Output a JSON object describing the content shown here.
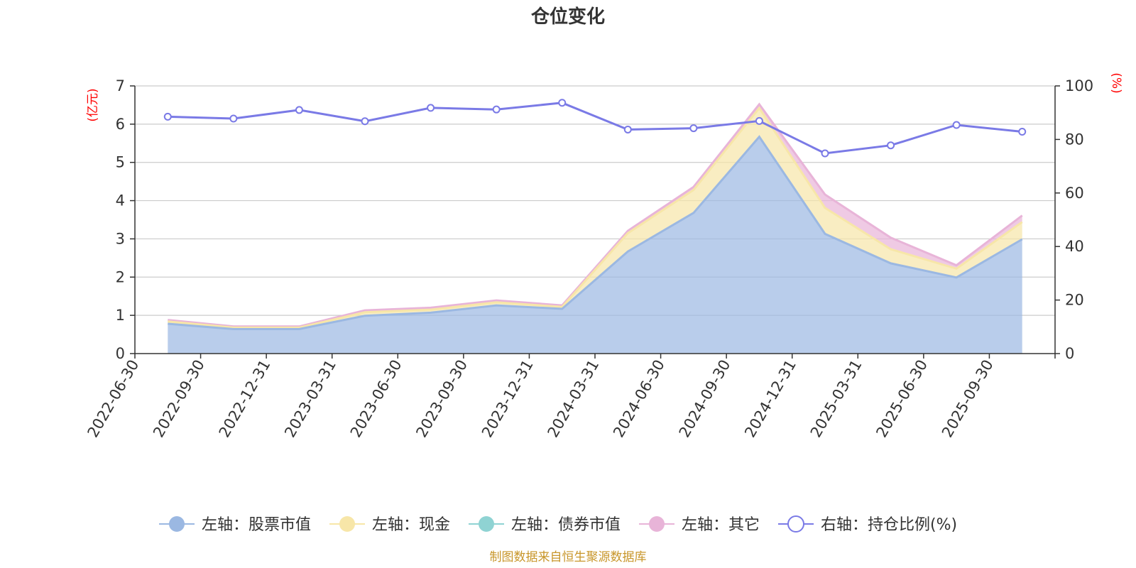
{
  "chart_data": {
    "type": "area",
    "title": "仓位变化",
    "x": [
      "2022-06-30",
      "2022-09-30",
      "2022-12-31",
      "2023-03-31",
      "2023-06-30",
      "2023-09-30",
      "2023-12-31",
      "2024-03-31",
      "2024-06-30",
      "2024-09-30",
      "2024-12-31",
      "2025-03-31",
      "2025-06-30",
      "2025-09-30"
    ],
    "left_axis": {
      "unit": "(亿元)",
      "ylim": [
        0,
        7
      ],
      "ticks": [
        "0",
        "1",
        "2",
        "3",
        "4",
        "5",
        "6",
        "7"
      ]
    },
    "right_axis": {
      "unit": "(%)",
      "ylim": [
        0,
        100
      ],
      "ticks": [
        "0",
        "20",
        "40",
        "60",
        "80",
        "100"
      ]
    },
    "stacked": true,
    "grid": true,
    "legend_position": "bottom",
    "series": [
      {
        "name": "左轴：股票市值",
        "axis": "left",
        "type": "area",
        "color": "#9bb8e2",
        "values": [
          0.78,
          0.64,
          0.64,
          0.99,
          1.07,
          1.26,
          1.17,
          2.67,
          3.68,
          5.67,
          3.13,
          2.36,
          1.99,
          2.99
        ]
      },
      {
        "name": "左轴：现金",
        "axis": "left",
        "type": "area",
        "color": "#f7e6a8",
        "values": [
          0.06,
          0.04,
          0.04,
          0.09,
          0.08,
          0.08,
          0.05,
          0.48,
          0.6,
          0.75,
          0.68,
          0.37,
          0.23,
          0.45
        ]
      },
      {
        "name": "左轴：债券市值",
        "axis": "left",
        "type": "area",
        "color": "#8fd3d3",
        "values": [
          0,
          0,
          0,
          0,
          0,
          0,
          0,
          0,
          0,
          0,
          0,
          0,
          0,
          0
        ]
      },
      {
        "name": "左轴：其它",
        "axis": "left",
        "type": "area",
        "color": "#e8b4d8",
        "values": [
          0.04,
          0.03,
          0.03,
          0.05,
          0.05,
          0.05,
          0.04,
          0.06,
          0.08,
          0.1,
          0.35,
          0.3,
          0.09,
          0.17
        ]
      },
      {
        "name": "右轴：持仓比例(%)",
        "axis": "right",
        "type": "line",
        "color": "#7a7ae6",
        "values": [
          88.5,
          87.8,
          91.0,
          86.8,
          91.8,
          91.2,
          93.7,
          83.7,
          84.2,
          86.9,
          74.8,
          77.8,
          85.4,
          82.9
        ]
      }
    ],
    "source": "制图数据来自恒生聚源数据库"
  }
}
